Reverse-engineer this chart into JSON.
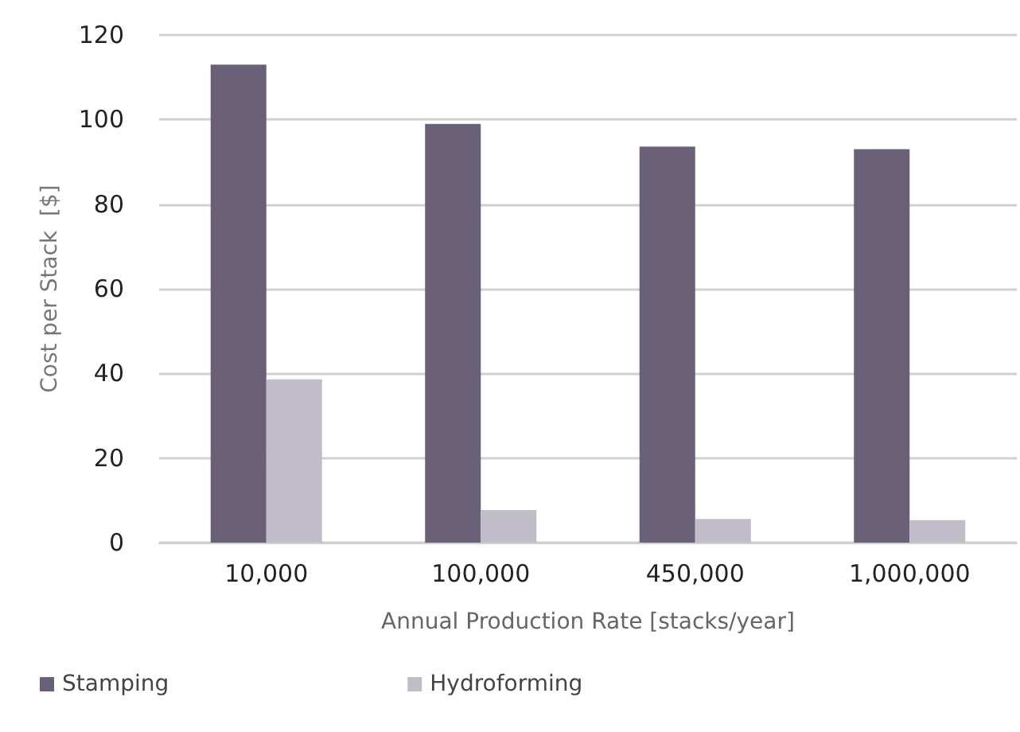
{
  "chart_data": {
    "type": "bar",
    "xlabel": "Annual Production Rate [stacks/year]",
    "ylabel": "Cost per Stack  [$]",
    "categories": [
      "10,000",
      "100,000",
      "450,000",
      "1,000,000"
    ],
    "series": [
      {
        "name": "Stamping",
        "color": "#6a6179",
        "values": [
          113,
          99,
          93.6,
          93
        ]
      },
      {
        "name": "Hydroforming",
        "color": "#c0bdc8",
        "values": [
          38.6,
          7.7,
          5.6,
          5.3
        ]
      }
    ],
    "ylim": [
      0,
      120
    ],
    "yticks": [
      0,
      20,
      40,
      60,
      80,
      100,
      120
    ],
    "grid": "y",
    "legend": "bottom"
  }
}
